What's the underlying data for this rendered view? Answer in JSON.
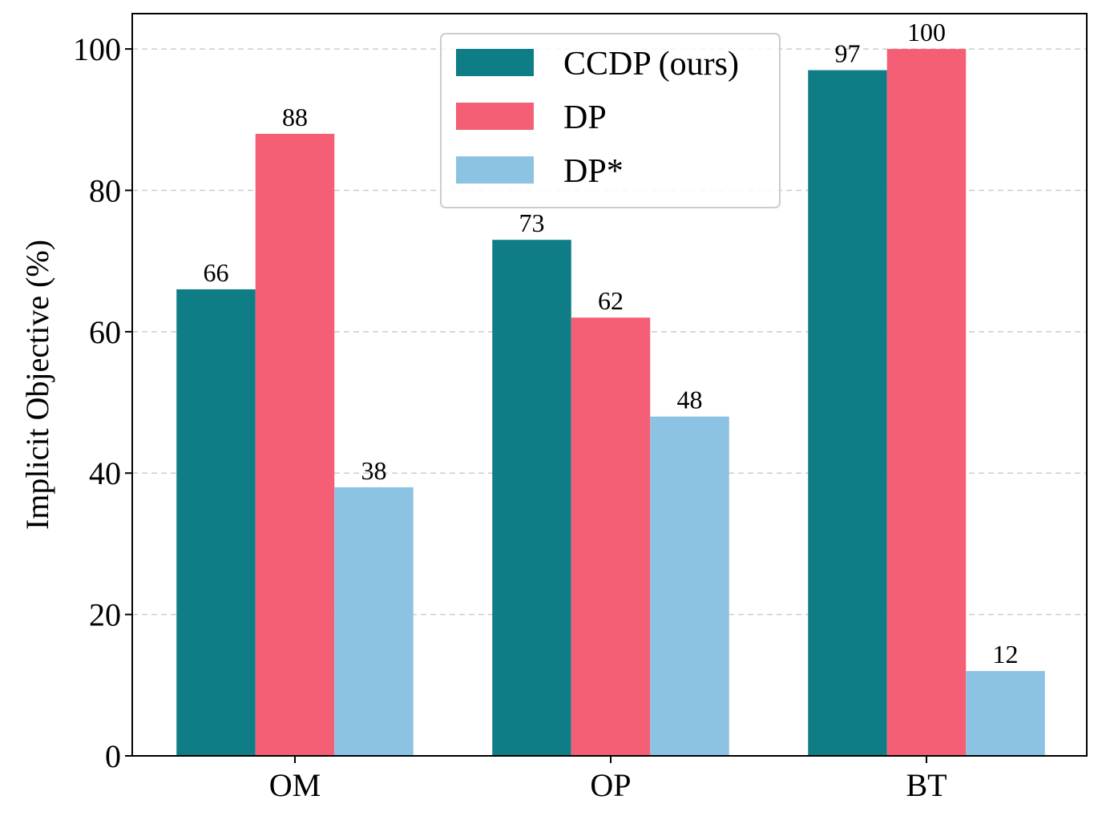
{
  "chart_data": {
    "type": "bar",
    "title": "",
    "xlabel": "",
    "ylabel": "Implicit Objective (%)",
    "categories": [
      "OM",
      "OP",
      "BT"
    ],
    "series": [
      {
        "name": "CCDP (ours)",
        "color": "#0f7d86",
        "values": [
          66,
          73,
          97
        ]
      },
      {
        "name": "DP",
        "color": "#f45f75",
        "values": [
          88,
          62,
          100
        ]
      },
      {
        "name": "DP*",
        "color": "#8dc3e2",
        "values": [
          38,
          48,
          12
        ]
      }
    ],
    "ylim": [
      0,
      105
    ],
    "yticks": [
      "0",
      "20",
      "40",
      "60",
      "80",
      "100"
    ],
    "grid": "horizontal dashed",
    "legend_position": "top-center",
    "data_labels": true
  }
}
